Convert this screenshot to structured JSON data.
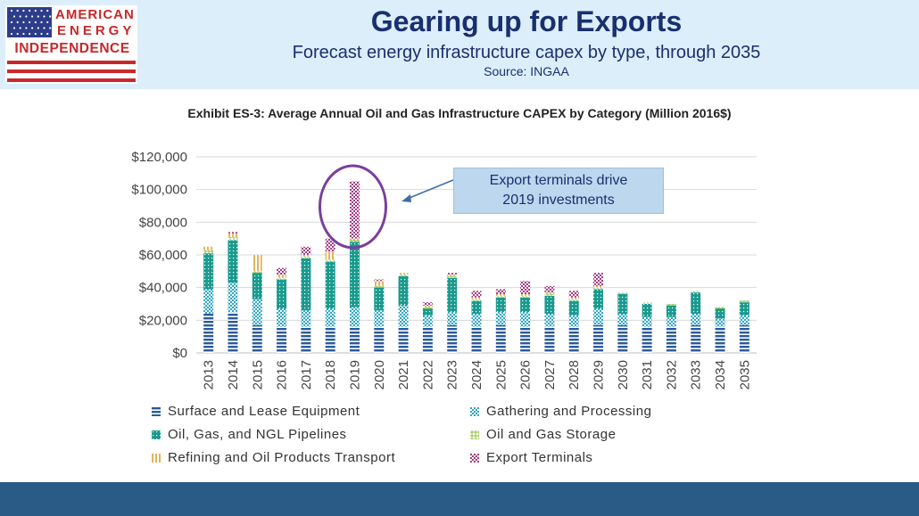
{
  "header": {
    "logo": {
      "line1": "AMERICAN",
      "line2": "ENERGY",
      "line3": "INDEPENDENCE"
    },
    "title": "Gearing up for Exports",
    "subtitle": "Forecast energy infrastructure capex by type, through 2035",
    "source": "Source: INGAA"
  },
  "colors": {
    "header_bg": "#dbeefa",
    "title": "#1a2f6f",
    "logo_red": "#c8282a",
    "flag_blue": "#2d3d8a",
    "footer": "#2a5b86",
    "callout_bg": "#bcd7ee",
    "circle": "#7a3e9e",
    "arrow": "#3e6fa4"
  },
  "callout": {
    "line1": "Export terminals drive",
    "line2": "2019 investments"
  },
  "chart_data": {
    "type": "bar",
    "stacked": true,
    "title": "Exhibit ES-3: Average Annual Oil and Gas Infrastructure CAPEX by Category (Million 2016$)",
    "xlabel": "",
    "ylabel": "",
    "ylim": [
      0,
      120000
    ],
    "yticks": [
      0,
      20000,
      40000,
      60000,
      80000,
      100000,
      120000
    ],
    "ytick_labels": [
      "$0",
      "$20,000",
      "$40,000",
      "$60,000",
      "$80,000",
      "$100,000",
      "$120,000"
    ],
    "grid": true,
    "legend_position": "bottom",
    "categories": [
      "2013",
      "2014",
      "2015",
      "2016",
      "2017",
      "2018",
      "2019",
      "2020",
      "2021",
      "2022",
      "2023",
      "2024",
      "2025",
      "2026",
      "2027",
      "2028",
      "2029",
      "2030",
      "2031",
      "2032",
      "2033",
      "2034",
      "2035"
    ],
    "series": [
      {
        "name": "Surface and Lease Equipment",
        "color": "#2a5a9c",
        "pattern": "hlines",
        "values": [
          24000,
          25000,
          17000,
          16000,
          16000,
          16000,
          16000,
          16000,
          16000,
          16000,
          17000,
          16000,
          17000,
          16000,
          16000,
          16000,
          17000,
          17000,
          16000,
          16000,
          17000,
          16000,
          17000
        ]
      },
      {
        "name": "Gathering and Processing",
        "color": "#2aa6c8",
        "pattern": "checker",
        "values": [
          15000,
          18000,
          16000,
          11000,
          10000,
          11000,
          12000,
          10000,
          13000,
          7000,
          8000,
          8000,
          8000,
          9000,
          8000,
          7000,
          10000,
          7000,
          6000,
          6000,
          7000,
          5000,
          6000
        ]
      },
      {
        "name": "Oil, Gas, and NGL Pipelines",
        "color": "#1a9a8e",
        "pattern": "dots",
        "values": [
          22000,
          26000,
          16000,
          18000,
          32000,
          29000,
          40000,
          14000,
          18000,
          4000,
          21000,
          8000,
          9000,
          9000,
          11000,
          9000,
          12000,
          12000,
          8000,
          7000,
          13000,
          6000,
          8000
        ]
      },
      {
        "name": "Oil and Gas Storage",
        "color": "#8fbf3a",
        "pattern": "plus",
        "values": [
          2000,
          2000,
          1000,
          1000,
          1000,
          1000,
          1000,
          1000,
          1000,
          1000,
          1000,
          1000,
          1000,
          1000,
          1000,
          1000,
          1000,
          1000,
          1000,
          1000,
          1000,
          1000,
          1000
        ]
      },
      {
        "name": "Refining and Oil Products Transport",
        "color": "#e3b35a",
        "pattern": "vlines",
        "values": [
          2000,
          2000,
          10000,
          2000,
          1000,
          5000,
          1000,
          3000,
          1000,
          1000,
          1000,
          1000,
          1000,
          1000,
          1000,
          1000,
          1000,
          0,
          0,
          0,
          0,
          0,
          0
        ]
      },
      {
        "name": "Export Terminals",
        "color": "#a63b84",
        "pattern": "checker",
        "values": [
          0,
          1000,
          0,
          4000,
          5000,
          8000,
          35000,
          1000,
          0,
          2000,
          1000,
          4000,
          3000,
          8000,
          4000,
          4000,
          8000,
          0,
          0,
          0,
          0,
          0,
          0
        ]
      }
    ]
  }
}
